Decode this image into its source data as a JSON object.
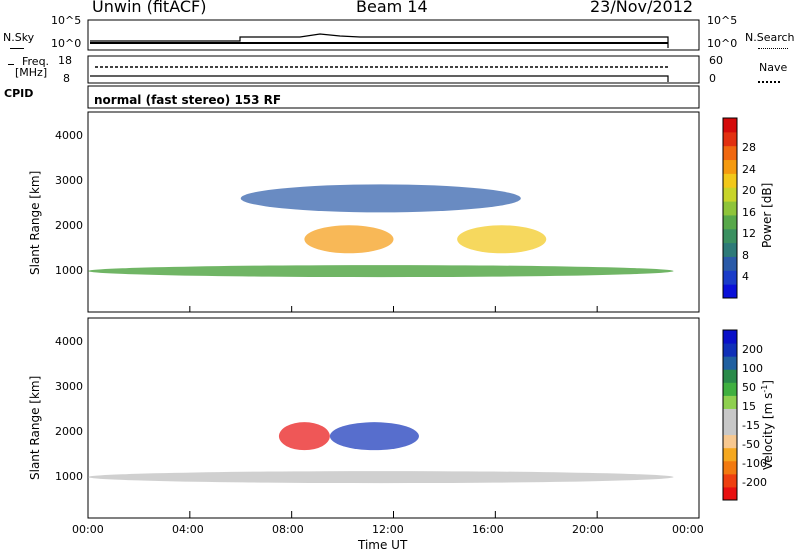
{
  "header": {
    "station": "Unwin (fitACF)",
    "beam": "Beam 14",
    "date": "23/Nov/2012"
  },
  "top_panels": {
    "nsky_label": "N.Sky",
    "nsearch_label": "N.Search",
    "noise_ticks_left": [
      "10^5",
      "10^0"
    ],
    "noise_ticks_right": [
      "10^5",
      "10^0"
    ],
    "freq_label": "Freq.",
    "freq_unit": "[MHz]",
    "freq_ticks": [
      "18",
      "8"
    ],
    "nave_label": "Nave",
    "nave_ticks": [
      "60",
      "0"
    ],
    "cpid_label": "CPID",
    "cpid_text": "normal (fast stereo) 153 RF"
  },
  "chart_data": [
    {
      "type": "heatmap",
      "name": "power",
      "ylabel": "Slant Range [km]",
      "yticks": [
        "1000",
        "2000",
        "3000",
        "4000"
      ],
      "ylim": [
        200,
        4600
      ],
      "xlim": [
        0,
        24
      ],
      "colorbar": {
        "label": "Power [dB]",
        "ticks": [
          "4",
          "8",
          "12",
          "16",
          "20",
          "24",
          "28"
        ],
        "range": [
          0,
          32
        ],
        "colors": [
          "#0a10d8",
          "#1a3cc8",
          "#2a5aa8",
          "#2d7a78",
          "#3a9060",
          "#57a84a",
          "#8ec43a",
          "#c8d42a",
          "#f2c81a",
          "#f59a10",
          "#f06810",
          "#e23010",
          "#d40a0a"
        ]
      },
      "features": [
        {
          "t0": 0.0,
          "t1": 23.0,
          "range_km": 1100,
          "power_db": 14
        },
        {
          "t0": 8.5,
          "t1": 12.0,
          "range_km": 1800,
          "power_db": 24
        },
        {
          "t0": 14.5,
          "t1": 18.0,
          "range_km": 1800,
          "power_db": 22
        },
        {
          "t0": 6.0,
          "t1": 17.0,
          "range_km": 2700,
          "power_db": 6
        }
      ]
    },
    {
      "type": "heatmap",
      "name": "velocity",
      "ylabel": "Slant Range [km]",
      "yticks": [
        "1000",
        "2000",
        "3000",
        "4000"
      ],
      "ylim": [
        200,
        4600
      ],
      "xlim": [
        0,
        24
      ],
      "xlabel": "Time UT",
      "xticks": [
        "00:00",
        "04:00",
        "08:00",
        "12:00",
        "16:00",
        "20:00",
        "00:00"
      ],
      "colorbar": {
        "label": "Velocity [m s",
        "label_sup": "-1",
        "label_close": "]",
        "ticks": [
          "-200",
          "-100",
          "-50",
          "-15",
          "15",
          "50",
          "100",
          "200"
        ],
        "colors": [
          "#e81010",
          "#ee4010",
          "#f27a10",
          "#f5a820",
          "#f7c890",
          "#c8c8c8",
          "#c8c8c8",
          "#8fd050",
          "#40b040",
          "#2a8a4a",
          "#2060a0",
          "#1030b8",
          "#0a10c8"
        ]
      },
      "features": [
        {
          "t0": 0.0,
          "t1": 23.0,
          "range_km": 1100,
          "velocity": 0
        },
        {
          "t0": 9.5,
          "t1": 13.0,
          "range_km": 2000,
          "velocity": 150
        },
        {
          "t0": 7.5,
          "t1": 9.5,
          "range_km": 2000,
          "velocity": -120
        }
      ]
    }
  ]
}
